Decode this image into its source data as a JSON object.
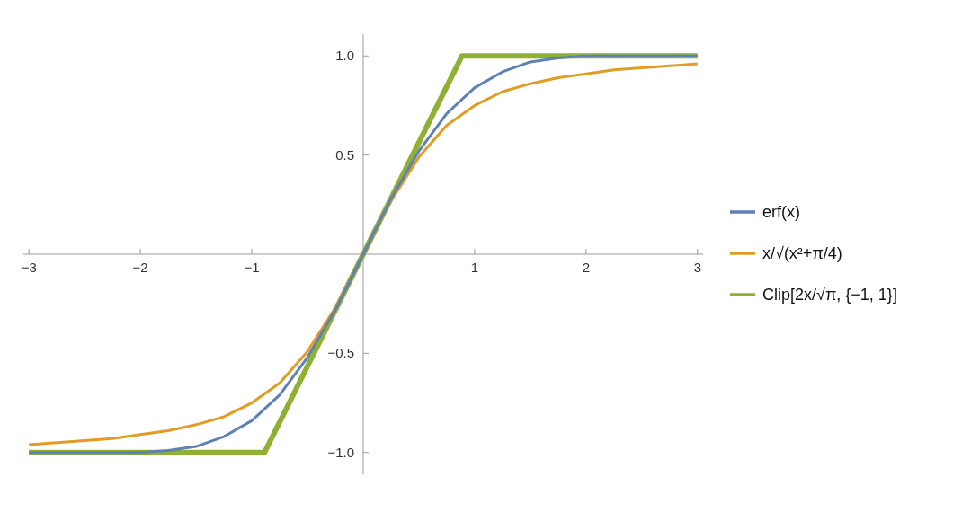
{
  "chart_data": {
    "type": "line",
    "xlim": [
      -3.05,
      3.05
    ],
    "ylim": [
      -1.11,
      1.11
    ],
    "xticks": [
      {
        "value": -3,
        "label": "−3"
      },
      {
        "value": -2,
        "label": "−2"
      },
      {
        "value": -1,
        "label": "−1"
      },
      1,
      2,
      3
    ],
    "yticks": [
      {
        "value": -1,
        "label": "−1.0"
      },
      {
        "value": -0.5,
        "label": "−0.5"
      },
      0.5,
      {
        "value": 1,
        "label": "1.0"
      }
    ],
    "legend": "right",
    "marker": "none",
    "line_style": "solid",
    "series": [
      {
        "name": "erf(x)",
        "color": "#5e81b5",
        "x": [
          -3,
          -2.75,
          -2.5,
          -2.25,
          -2,
          -1.75,
          -1.5,
          -1.25,
          -1,
          -0.75,
          -0.5,
          -0.25,
          0,
          0.25,
          0.5,
          0.75,
          1,
          1.25,
          1.5,
          1.75,
          2,
          2.25,
          2.5,
          2.75,
          3
        ],
        "values": [
          -1,
          -1,
          -1,
          -1,
          -1,
          -0.99,
          -0.97,
          -0.92,
          -0.84,
          -0.71,
          -0.52,
          -0.28,
          0,
          0.28,
          0.52,
          0.71,
          0.84,
          0.92,
          0.97,
          0.99,
          1,
          1,
          1,
          1,
          1
        ]
      },
      {
        "name": "x/√(x²+π/4)",
        "color": "#e19c24",
        "x": [
          -3,
          -2.75,
          -2.5,
          -2.25,
          -2,
          -1.75,
          -1.5,
          -1.25,
          -1,
          -0.75,
          -0.5,
          -0.25,
          0,
          0.25,
          0.5,
          0.75,
          1,
          1.25,
          1.5,
          1.75,
          2,
          2.25,
          2.5,
          2.75,
          3
        ],
        "values": [
          -0.96,
          -0.95,
          -0.94,
          -0.93,
          -0.91,
          -0.89,
          -0.86,
          -0.82,
          -0.75,
          -0.65,
          -0.49,
          -0.27,
          0,
          0.27,
          0.49,
          0.65,
          0.75,
          0.82,
          0.86,
          0.89,
          0.91,
          0.93,
          0.94,
          0.95,
          0.96
        ]
      },
      {
        "name": "Clip[2x/√π, {−1, 1}]",
        "color": "#8fb032",
        "x": [
          -3,
          -0.886,
          0.886,
          3
        ],
        "values": [
          -1,
          -1,
          1,
          1
        ]
      }
    ]
  }
}
